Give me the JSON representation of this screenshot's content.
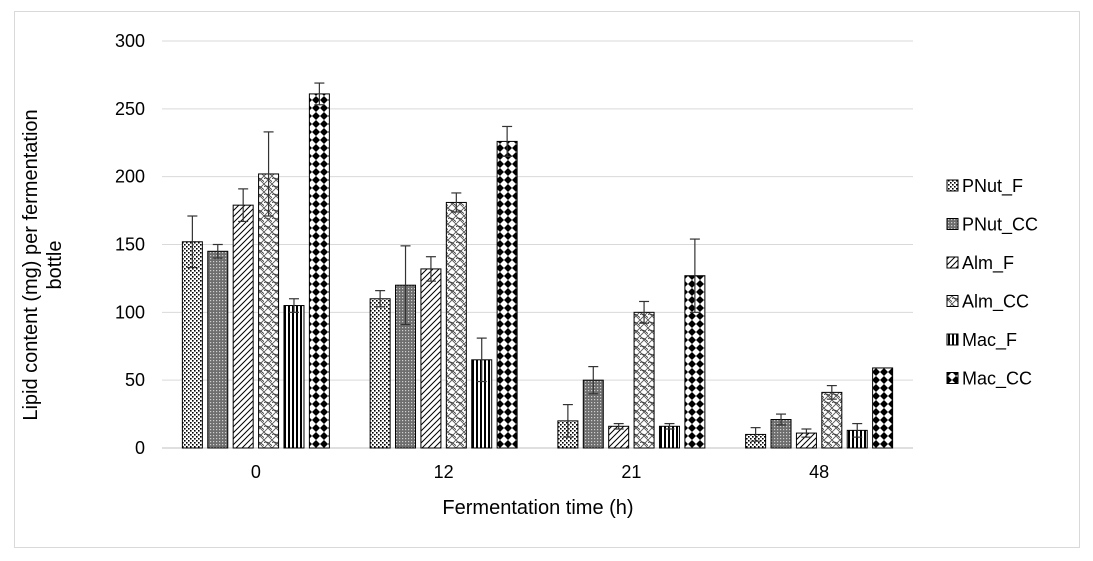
{
  "chart_data": {
    "type": "bar",
    "title": "",
    "xlabel": "Fermentation time (h)",
    "ylabel_line1": "Lipid content (mg) per fermentation",
    "ylabel_line2": "bottle",
    "ylim": [
      0,
      300
    ],
    "yticks": [
      0,
      50,
      100,
      150,
      200,
      250,
      300
    ],
    "grid": true,
    "legend_position": "right",
    "categories": [
      "0",
      "12",
      "21",
      "48"
    ],
    "series": [
      {
        "name": "PNut_F",
        "pattern": "dots",
        "values": [
          152,
          110,
          20,
          10
        ],
        "errors": [
          19,
          6,
          12,
          5
        ]
      },
      {
        "name": "PNut_CC",
        "pattern": "dense",
        "values": [
          145,
          120,
          50,
          21
        ],
        "errors": [
          5,
          29,
          10,
          4
        ]
      },
      {
        "name": "Alm_F",
        "pattern": "diagonal",
        "values": [
          179,
          132,
          16,
          11
        ],
        "errors": [
          12,
          9,
          2,
          3
        ]
      },
      {
        "name": "Alm_CC",
        "pattern": "wave",
        "values": [
          202,
          181,
          100,
          41
        ],
        "errors": [
          31,
          7,
          8,
          5
        ]
      },
      {
        "name": "Mac_F",
        "pattern": "vertical",
        "values": [
          105,
          65,
          16,
          13
        ],
        "errors": [
          5,
          16,
          2,
          5
        ]
      },
      {
        "name": "Mac_CC",
        "pattern": "diamond",
        "values": [
          261,
          226,
          127,
          59
        ],
        "errors": [
          8,
          11,
          27,
          0
        ]
      }
    ]
  }
}
